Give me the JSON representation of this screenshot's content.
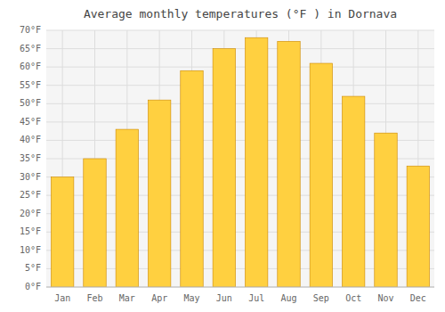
{
  "chart_data": {
    "type": "bar",
    "title": "Average monthly temperatures (°F ) in Dornava",
    "categories": [
      "Jan",
      "Feb",
      "Mar",
      "Apr",
      "May",
      "Jun",
      "Jul",
      "Aug",
      "Sep",
      "Oct",
      "Nov",
      "Dec"
    ],
    "values": [
      30,
      35,
      43,
      51,
      59,
      65,
      68,
      67,
      61,
      52,
      42,
      33
    ],
    "color": "#FFD040",
    "ylim": [
      0,
      70
    ],
    "yticks": [
      {
        "value": 0,
        "label": "0°F"
      },
      {
        "value": 5,
        "label": "5°F"
      },
      {
        "value": 10,
        "label": "10°F"
      },
      {
        "value": 15,
        "label": "15°F"
      },
      {
        "value": 20,
        "label": "20°F"
      },
      {
        "value": 25,
        "label": "25°F"
      },
      {
        "value": 30,
        "label": "30°F"
      },
      {
        "value": 35,
        "label": "35°F"
      },
      {
        "value": 40,
        "label": "40°F"
      },
      {
        "value": 45,
        "label": "45°F"
      },
      {
        "value": 50,
        "label": "50°F"
      },
      {
        "value": 55,
        "label": "55°F"
      },
      {
        "value": 60,
        "label": "60°F"
      },
      {
        "value": 65,
        "label": "65°F"
      },
      {
        "value": 70,
        "label": "70°F"
      }
    ],
    "grid": true
  }
}
